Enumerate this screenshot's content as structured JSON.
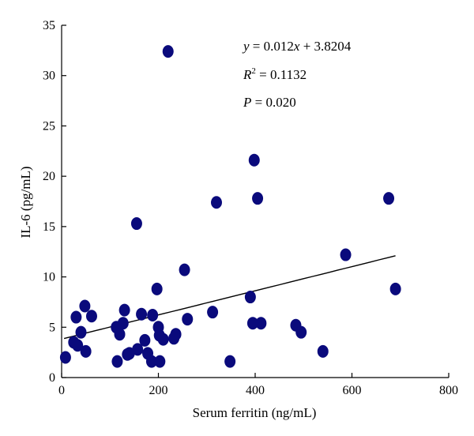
{
  "chart_data": {
    "type": "scatter",
    "xlabel": "Serum ferritin (ng/mL)",
    "ylabel": "IL-6 (pg/mL)",
    "xlim": [
      0,
      800
    ],
    "ylim": [
      0,
      35
    ],
    "xticks": [
      0,
      200,
      400,
      600,
      800
    ],
    "yticks": [
      0,
      5,
      10,
      15,
      20,
      25,
      30,
      35
    ],
    "grid": false,
    "point_color": "#0a0a7c",
    "annotations": {
      "equation": {
        "lhs": "y",
        "op": " = 0.012",
        "var": "x",
        "rest": " + 3.8204"
      },
      "r2": {
        "base": "R",
        "sup": "2",
        "rest": " = 0.1132"
      },
      "p": {
        "base": "P",
        "rest": " = 0.020"
      }
    },
    "trendline": {
      "slope": 0.012,
      "intercept": 3.8204,
      "x_range": [
        5,
        690
      ]
    },
    "points": [
      {
        "x": 8,
        "y": 2.0
      },
      {
        "x": 25,
        "y": 3.5
      },
      {
        "x": 30,
        "y": 6.0
      },
      {
        "x": 33,
        "y": 3.2
      },
      {
        "x": 40,
        "y": 4.5
      },
      {
        "x": 48,
        "y": 7.1
      },
      {
        "x": 50,
        "y": 2.6
      },
      {
        "x": 62,
        "y": 6.1
      },
      {
        "x": 113,
        "y": 5.0
      },
      {
        "x": 115,
        "y": 1.6
      },
      {
        "x": 120,
        "y": 4.3
      },
      {
        "x": 127,
        "y": 5.4
      },
      {
        "x": 130,
        "y": 6.7
      },
      {
        "x": 136,
        "y": 2.3
      },
      {
        "x": 140,
        "y": 2.4
      },
      {
        "x": 155,
        "y": 15.3
      },
      {
        "x": 157,
        "y": 2.8
      },
      {
        "x": 165,
        "y": 6.3
      },
      {
        "x": 172,
        "y": 3.7
      },
      {
        "x": 178,
        "y": 2.4
      },
      {
        "x": 186,
        "y": 1.6
      },
      {
        "x": 188,
        "y": 6.2
      },
      {
        "x": 197,
        "y": 8.8
      },
      {
        "x": 200,
        "y": 5.0
      },
      {
        "x": 202,
        "y": 4.2
      },
      {
        "x": 203,
        "y": 1.6
      },
      {
        "x": 210,
        "y": 3.8
      },
      {
        "x": 220,
        "y": 32.4
      },
      {
        "x": 232,
        "y": 3.9
      },
      {
        "x": 236,
        "y": 4.3
      },
      {
        "x": 254,
        "y": 10.7
      },
      {
        "x": 260,
        "y": 5.8
      },
      {
        "x": 312,
        "y": 6.5
      },
      {
        "x": 320,
        "y": 17.4
      },
      {
        "x": 348,
        "y": 1.6
      },
      {
        "x": 390,
        "y": 8.0
      },
      {
        "x": 395,
        "y": 5.4
      },
      {
        "x": 398,
        "y": 21.6
      },
      {
        "x": 405,
        "y": 17.8
      },
      {
        "x": 412,
        "y": 5.4
      },
      {
        "x": 484,
        "y": 5.2
      },
      {
        "x": 495,
        "y": 4.5
      },
      {
        "x": 540,
        "y": 2.6
      },
      {
        "x": 587,
        "y": 12.2
      },
      {
        "x": 676,
        "y": 17.8
      },
      {
        "x": 690,
        "y": 8.8
      }
    ]
  }
}
